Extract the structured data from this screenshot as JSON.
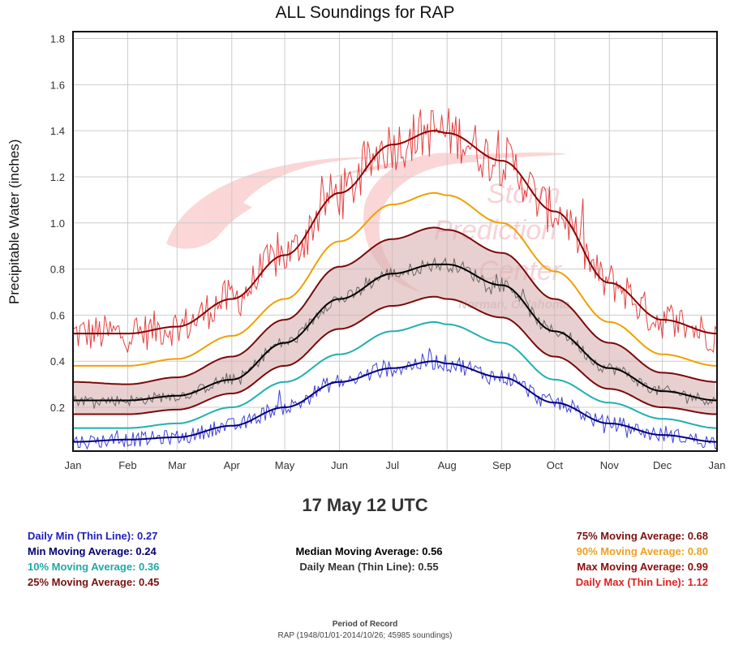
{
  "chart_data": {
    "type": "line",
    "title": "ALL Soundings for RAP",
    "xlabel": "",
    "ylabel": "Precipitable Water (inches)",
    "ylim": [
      0.01,
      1.83
    ],
    "yticks": [
      0.2,
      0.4,
      0.6,
      0.8,
      1.0,
      1.2,
      1.4,
      1.6,
      1.8
    ],
    "ytick_labels": [
      "0.2",
      "0.4",
      "0.6",
      "0.8",
      "1.0",
      "1.2",
      "1.4",
      "1.6",
      "1.8"
    ],
    "xlim": [
      0,
      365
    ],
    "xticks": [
      0,
      31,
      59,
      90,
      120,
      151,
      181,
      212,
      243,
      273,
      304,
      334,
      365
    ],
    "xtick_labels": [
      "Jan",
      "Feb",
      "Mar",
      "Apr",
      "May",
      "Jun",
      "Jul",
      "Aug",
      "Sep",
      "Oct",
      "Nov",
      "Dec",
      "Jan"
    ],
    "grid": true,
    "x": [
      0,
      31,
      59,
      90,
      120,
      151,
      181,
      205,
      212,
      243,
      273,
      304,
      334,
      365
    ],
    "series": [
      {
        "name": "Max Moving Average",
        "color": "#8b0000",
        "width": 2,
        "values": [
          0.52,
          0.52,
          0.55,
          0.67,
          0.86,
          1.13,
          1.34,
          1.4,
          1.39,
          1.27,
          1.05,
          0.74,
          0.58,
          0.52
        ]
      },
      {
        "name": "90% Moving Average",
        "color": "#f0a000",
        "width": 2,
        "values": [
          0.38,
          0.38,
          0.41,
          0.51,
          0.67,
          0.92,
          1.08,
          1.13,
          1.12,
          1.0,
          0.79,
          0.57,
          0.43,
          0.38
        ]
      },
      {
        "name": "75% Moving Average",
        "color": "#7a0a0a",
        "width": 2,
        "values": [
          0.31,
          0.3,
          0.33,
          0.42,
          0.58,
          0.81,
          0.93,
          0.98,
          0.97,
          0.87,
          0.67,
          0.48,
          0.35,
          0.31
        ]
      },
      {
        "name": "Median Moving Average",
        "color": "#000000",
        "width": 2,
        "values": [
          0.23,
          0.23,
          0.25,
          0.32,
          0.48,
          0.67,
          0.78,
          0.82,
          0.82,
          0.73,
          0.53,
          0.37,
          0.27,
          0.23
        ]
      },
      {
        "name": "25% Moving Average",
        "color": "#7a0a0a",
        "width": 2,
        "values": [
          0.17,
          0.17,
          0.19,
          0.26,
          0.38,
          0.54,
          0.64,
          0.68,
          0.67,
          0.59,
          0.42,
          0.28,
          0.2,
          0.17
        ]
      },
      {
        "name": "10% Moving Average",
        "color": "#20b0b0",
        "width": 2,
        "values": [
          0.11,
          0.11,
          0.13,
          0.2,
          0.31,
          0.43,
          0.53,
          0.57,
          0.56,
          0.48,
          0.32,
          0.22,
          0.15,
          0.11
        ]
      },
      {
        "name": "Min Moving Average",
        "color": "#000080",
        "width": 2,
        "values": [
          0.05,
          0.06,
          0.07,
          0.12,
          0.2,
          0.31,
          0.37,
          0.4,
          0.39,
          0.33,
          0.22,
          0.13,
          0.08,
          0.05
        ]
      }
    ],
    "daily_series": [
      {
        "name": "Daily Max (Thin Line)",
        "color": "#e02020",
        "base": "Max Moving Average",
        "noise": 0.09
      },
      {
        "name": "Daily Mean (Thin Line)",
        "color": "#555555",
        "base": "Median Moving Average",
        "noise": 0.03
      },
      {
        "name": "Daily Min (Thin Line)",
        "color": "#2020d0",
        "base": "Min Moving Average",
        "noise": 0.045
      }
    ],
    "shaded_band": {
      "between": [
        "25% Moving Average",
        "75% Moving Average"
      ],
      "color": "#d9b0b0"
    },
    "watermark": {
      "line1": "Storm",
      "line2": "Prediction",
      "line3": "Center",
      "line4": "Norman, Oklahoma"
    }
  },
  "selected_date": "17 May 12 UTC",
  "stats": {
    "left": [
      {
        "label": "Daily Min (Thin Line): 0.27",
        "color": "#2020c0"
      },
      {
        "label": "Min Moving Average: 0.24",
        "color": "#000070"
      },
      {
        "label": "10% Moving Average: 0.36",
        "color": "#20a8a8"
      },
      {
        "label": "25% Moving Average: 0.45",
        "color": "#7a1010"
      }
    ],
    "middle": [
      {
        "label": "Median Moving Average: 0.56",
        "color": "#000000"
      },
      {
        "label": "Daily Mean (Thin Line): 0.55",
        "color": "#333333"
      }
    ],
    "right": [
      {
        "label": "75% Moving Average: 0.68",
        "color": "#7a1010"
      },
      {
        "label": "90% Moving Average: 0.80",
        "color": "#f0a020"
      },
      {
        "label": "Max Moving Average: 0.99",
        "color": "#8b0a0a"
      },
      {
        "label": "Daily Max (Thin Line): 1.12",
        "color": "#e02020"
      }
    ]
  },
  "period": {
    "label": "Period of Record",
    "value": "RAP (1948/01/01-2014/10/26; 45985 soundings)"
  }
}
